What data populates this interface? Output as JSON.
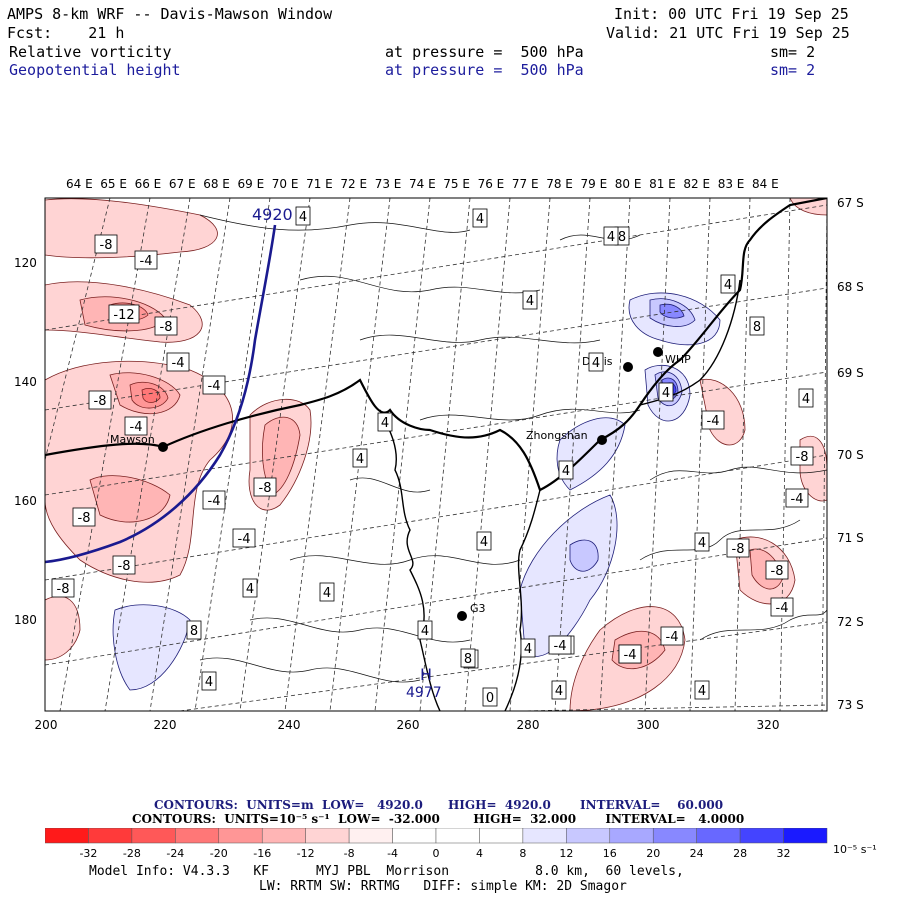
{
  "header": {
    "title": "AMPS 8-km WRF -- Davis-Mawson Window",
    "init": "Init: 00 UTC Fri 19 Sep 25",
    "fcst": "Fcst:    21 h",
    "valid": "Valid: 21 UTC Fri 19 Sep 25",
    "field1": {
      "name": "Relative vorticity",
      "level": "at pressure =  500 hPa",
      "sm": "sm= 2"
    },
    "field2": {
      "name": "Geopotential height",
      "level": "at pressure =  500 hPa",
      "sm": "sm= 2"
    }
  },
  "map": {
    "lon_labels": [
      "64 E",
      "65 E",
      "66 E",
      "67 E",
      "68 E",
      "69 E",
      "70 E",
      "71 E",
      "72 E",
      "73 E",
      "74 E",
      "75 E",
      "76 E",
      "77 E",
      "78 E",
      "79 E",
      "80 E",
      "81 E",
      "82 E",
      "83 E",
      "84 E"
    ],
    "lat_labels": [
      "67 S",
      "68 S",
      "69 S",
      "70 S",
      "71 S",
      "72 S",
      "73 S"
    ],
    "y_ticks": [
      "120",
      "140",
      "160",
      "180"
    ],
    "x_ticks": [
      "200",
      "220",
      "240",
      "260",
      "280",
      "300",
      "320"
    ],
    "stations": [
      {
        "name": "Mawson"
      },
      {
        "name": "Davis"
      },
      {
        "name": "WHP"
      },
      {
        "name": "Zhongshan"
      },
      {
        "name": "G3"
      }
    ],
    "height_labels": [
      "4920",
      "4977"
    ],
    "high_marker": "H",
    "vort_labels": [
      "-8",
      "-4",
      "-12",
      "-8",
      "-4",
      "-4",
      "-8",
      "-4",
      "-4",
      "-8",
      "-4",
      "-8",
      "-8",
      "-8",
      "4",
      "4",
      "4",
      "4",
      "4",
      "4",
      "4",
      "4",
      "4",
      "4",
      "4",
      "8",
      "8",
      "4",
      "4",
      "-4",
      "-8",
      "4",
      "-4",
      "4",
      "-4",
      "4",
      "4",
      "4",
      "4",
      "8",
      "8",
      "-4",
      "-8",
      "-4",
      "-8",
      "-8",
      "-4",
      "-4",
      "4",
      "4",
      "0"
    ]
  },
  "footer": {
    "contours1": "CONTOURS:  UNITS=m  LOW=   4920.0      HIGH=  4920.0       INTERVAL=    60.000",
    "contours2": "CONTOURS:  UNITS=10⁻⁵ s⁻¹  LOW=  -32.000        HIGH=  32.000       INTERVAL=   4.0000",
    "colorbar_ticks": [
      "-32",
      "-28",
      "-24",
      "-20",
      "-16",
      "-12",
      "-8",
      "-4",
      "0",
      "4",
      "8",
      "12",
      "16",
      "20",
      "24",
      "28",
      "32"
    ],
    "colorbar_units": "10⁻⁵ s⁻¹",
    "colorbar_colors": [
      "#ff1a1a",
      "#ff3a3a",
      "#ff5858",
      "#ff7777",
      "#ff9696",
      "#ffb5b5",
      "#ffd4d4",
      "#fff0f0",
      "#ffffff",
      "#ffffff",
      "#e6e6ff",
      "#c8c8ff",
      "#a8a8ff",
      "#8888ff",
      "#6868ff",
      "#4444ff",
      "#1a1aff"
    ],
    "model_info": "Model Info: V4.3.3   KF      MYJ PBL  Morrison           8.0 km,  60 levels,",
    "model_info2": "LW: RRTM SW: RRTMG   DIFF: simple KM: 2D Smagor"
  }
}
